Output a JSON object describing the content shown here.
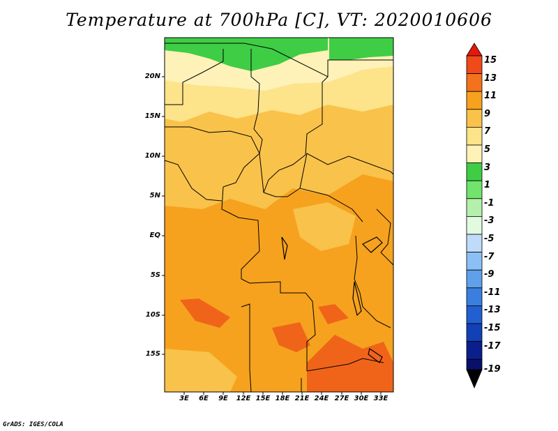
{
  "title": "Temperature at 700hPa [C], VT: 2020010606",
  "credit": "GrADS: IGES/COLA",
  "map": {
    "lon_labels": [
      "3E",
      "6E",
      "9E",
      "12E",
      "15E",
      "18E",
      "21E",
      "24E",
      "27E",
      "30E",
      "33E"
    ],
    "lat_labels": [
      "20N",
      "15N",
      "10N",
      "5N",
      "EQ",
      "5S",
      "10S",
      "15S"
    ],
    "colors": {
      "land_base": "#f6a21e",
      "warm_band": "#f9c24a",
      "cool_band": "#fde38a",
      "pale_band": "#fef2b8",
      "hot_patch": "#f0641a",
      "green_cold": "#3fcd45"
    }
  },
  "colorbar": {
    "labels": [
      "15",
      "13",
      "11",
      "9",
      "7",
      "5",
      "3",
      "1",
      "-1",
      "-3",
      "-5",
      "-7",
      "-9",
      "-11",
      "-13",
      "-15",
      "-17",
      "-19"
    ],
    "colors": [
      "#e4190b",
      "#f0491a",
      "#f4721d",
      "#f6a21e",
      "#f9c24a",
      "#fde38a",
      "#fef2b8",
      "#3fcd45",
      "#72e36c",
      "#b4f0ac",
      "#e2fbe0",
      "#bedcfa",
      "#8cc0f4",
      "#5fa0ea",
      "#3a7fe0",
      "#225fd0",
      "#1240b6",
      "#0a1f8c",
      "#08106a"
    ]
  }
}
